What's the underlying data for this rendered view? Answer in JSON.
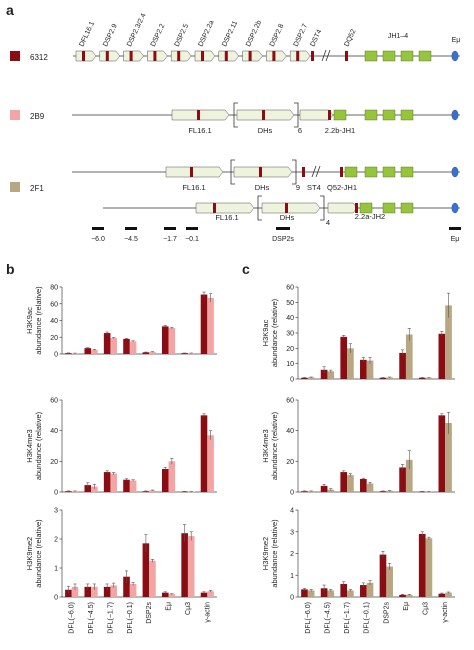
{
  "panels": {
    "a": "a",
    "b": "b",
    "c": "c"
  },
  "colors": {
    "c6312": "#8b0d14",
    "c2B9": "#f2a5a5",
    "c2F1": "#b9a783",
    "dsp_box": "#eef3dd",
    "jh_box": "#96c43c",
    "eu": "#3b6fd0",
    "redmark": "#8b0d14"
  },
  "legend": [
    {
      "label": "6312",
      "color": "#8b0d14"
    },
    {
      "label": "2B9",
      "color": "#f2a5a5"
    },
    {
      "label": "2F1",
      "color": "#b9a783"
    }
  ],
  "gene_labels": [
    "DFL16.1",
    "DSP2.9",
    "DSP2.3/2.4",
    "DSP2.2",
    "DSP2.5",
    "DSP2.2a",
    "DSP2.11",
    "DSP2.2b",
    "DSP2.8",
    "DSP2.7",
    "DST4",
    "DQ52",
    "JH1–4",
    "Eμ"
  ],
  "alleles": {
    "r2B9": {
      "box1": "FL16.1",
      "box2": "DHs",
      "count": "6",
      "box3": "2.2b-JH1"
    },
    "r2F1a": {
      "box1": "FL16.1",
      "box2": "DHs",
      "count": "9",
      "box3": "ST4",
      "box4": "Q52-JH1"
    },
    "r2F1b": {
      "box1": "FL16.1",
      "box2": "DHs",
      "count": "4",
      "box3": "2.2a-JH2"
    }
  },
  "probes": {
    "p1": "−6.0",
    "p2": "−4.5",
    "p3": "−1.7",
    "p4": "−0.1",
    "p5": "DSP2s",
    "p6": "Eμ"
  },
  "chart_data": [
    {
      "type": "bar",
      "panel": "b",
      "ylabel": "H3K9ac abundance (relative)",
      "categories": [
        "DFL(−6.0)",
        "DFL(−4.5)",
        "DFL(−1.7)",
        "DFL(−0.1)",
        "DSP2s",
        "Eμ",
        "Cμ3",
        "γ-actin"
      ],
      "ylim": [
        0,
        80
      ],
      "yticks": [
        0,
        20,
        40,
        60,
        80
      ],
      "series": [
        {
          "name": "6312",
          "values": [
            1,
            7,
            25,
            18,
            2,
            33,
            1,
            71
          ],
          "errors": [
            0.3,
            0.5,
            1.2,
            0.8,
            0.3,
            1,
            0.2,
            3
          ]
        },
        {
          "name": "2B9",
          "values": [
            0.8,
            5,
            19,
            15,
            2.5,
            31,
            1,
            67
          ],
          "errors": [
            0.3,
            0.5,
            0.8,
            0.8,
            0.4,
            0.8,
            0.2,
            5
          ]
        }
      ]
    },
    {
      "type": "bar",
      "panel": "b",
      "ylabel": "H3K4me3 abundance (relative)",
      "categories": [
        "DFL(−6.0)",
        "DFL(−4.5)",
        "DFL(−1.7)",
        "DFL(−0.1)",
        "DSP2s",
        "Eμ",
        "Cμ3",
        "γ-actin"
      ],
      "ylim": [
        0,
        60
      ],
      "yticks": [
        0,
        20,
        40,
        60
      ],
      "series": [
        {
          "name": "6312",
          "values": [
            0.5,
            4.5,
            13,
            8,
            0.5,
            15,
            0.3,
            50
          ],
          "errors": [
            0.2,
            1.5,
            0.8,
            0.6,
            0.2,
            1,
            0.1,
            1
          ]
        },
        {
          "name": "2B9",
          "values": [
            0.5,
            3.5,
            12,
            7.5,
            1,
            20,
            0.3,
            37
          ],
          "errors": [
            0.2,
            1.5,
            0.8,
            0.5,
            0.3,
            2,
            0.1,
            3
          ]
        }
      ]
    },
    {
      "type": "bar",
      "panel": "b",
      "ylabel": "H3K9me2 abundance (relative)",
      "categories": [
        "DFL(−6.0)",
        "DFL(−4.5)",
        "DFL(−1.7)",
        "DFL(−0.1)",
        "DSP2s",
        "Eμ",
        "Cμ3",
        "γ-actin"
      ],
      "xlabels": [
        "DFL(−6.0)",
        "DFL(−4.5)",
        "DFL(−1.7)",
        "DFL(−0.1)",
        "DSP2s",
        "Eμ",
        "Cμ3",
        "γ-actin"
      ],
      "ylim": [
        0,
        3
      ],
      "yticks": [
        0,
        1,
        2,
        3
      ],
      "series": [
        {
          "name": "6312",
          "values": [
            0.25,
            0.35,
            0.35,
            0.7,
            1.85,
            0.15,
            2.2,
            0.15
          ],
          "errors": [
            0.12,
            0.1,
            0.1,
            0.2,
            0.3,
            0.03,
            0.3,
            0.03
          ]
        },
        {
          "name": "2B9",
          "values": [
            0.35,
            0.35,
            0.4,
            0.45,
            1.25,
            0.1,
            2.1,
            0.2
          ],
          "errors": [
            0.1,
            0.1,
            0.08,
            0.05,
            0.05,
            0.02,
            0.15,
            0.03
          ]
        }
      ]
    },
    {
      "type": "bar",
      "panel": "c",
      "ylabel": "H3K9ac abundance (relative)",
      "categories": [
        "DFL(−6.0)",
        "DFL(−4.5)",
        "DFL(−1.7)",
        "DFL(−0.1)",
        "DSP2s",
        "Eμ",
        "Cμ3",
        "γ-actin"
      ],
      "ylim": [
        0,
        60
      ],
      "yticks": [
        0,
        10,
        20,
        30,
        40,
        50,
        60
      ],
      "series": [
        {
          "name": "6312",
          "values": [
            0.8,
            6,
            27.5,
            12.5,
            0.8,
            17,
            0.8,
            29.5
          ],
          "errors": [
            0.2,
            2,
            1,
            1.5,
            0.2,
            2,
            0.2,
            1.5
          ]
        },
        {
          "name": "2F1",
          "values": [
            1,
            5,
            20,
            12,
            1,
            29,
            0.8,
            48
          ],
          "errors": [
            0.3,
            0.8,
            3,
            2,
            0.3,
            4,
            0.2,
            8
          ]
        }
      ]
    },
    {
      "type": "bar",
      "panel": "c",
      "ylabel": "H3K4me3 abundance (relative)",
      "categories": [
        "DFL(−6.0)",
        "DFL(−4.5)",
        "DFL(−1.7)",
        "DFL(−0.1)",
        "DSP2s",
        "Eμ",
        "Cμ3",
        "γ-actin"
      ],
      "ylim": [
        0,
        60
      ],
      "yticks": [
        0,
        20,
        40,
        60
      ],
      "series": [
        {
          "name": "6312",
          "values": [
            0.5,
            4,
            13,
            8.5,
            0.5,
            16,
            0.3,
            50
          ],
          "errors": [
            0.2,
            1,
            0.8,
            0.5,
            0.2,
            2,
            0.1,
            1
          ]
        },
        {
          "name": "2F1",
          "values": [
            0.5,
            1.5,
            11,
            5.5,
            0.8,
            21,
            0.3,
            45
          ],
          "errors": [
            0.2,
            0.8,
            1,
            0.8,
            0.2,
            6,
            0.1,
            7
          ]
        }
      ]
    },
    {
      "type": "bar",
      "panel": "c",
      "ylabel": "H3K9me2 abundance (relative)",
      "categories": [
        "DFL(−6.0)",
        "DFL(−4.5)",
        "DFL(−1.7)",
        "DFL(−0.1)",
        "DSP2s",
        "Eμ",
        "Cμ3",
        "γ-actin"
      ],
      "xlabels": [
        "DFL(−6.0)",
        "DFL(−4.5)",
        "DFL(−1.7)",
        "DFL(−0.1)",
        "DSP2s",
        "Eμ",
        "Cμ3",
        "γ-actin"
      ],
      "ylim": [
        0,
        4
      ],
      "yticks": [
        0,
        1,
        2,
        3,
        4
      ],
      "series": [
        {
          "name": "6312",
          "values": [
            0.35,
            0.4,
            0.6,
            0.55,
            1.95,
            0.1,
            2.9,
            0.15
          ],
          "errors": [
            0.05,
            0.15,
            0.1,
            0.1,
            0.15,
            0.02,
            0.1,
            0.03
          ]
        },
        {
          "name": "2F1",
          "values": [
            0.3,
            0.3,
            0.3,
            0.65,
            1.4,
            0.1,
            2.7,
            0.2
          ],
          "errors": [
            0.05,
            0.05,
            0.05,
            0.1,
            0.15,
            0.02,
            0.05,
            0.03
          ]
        }
      ]
    }
  ]
}
